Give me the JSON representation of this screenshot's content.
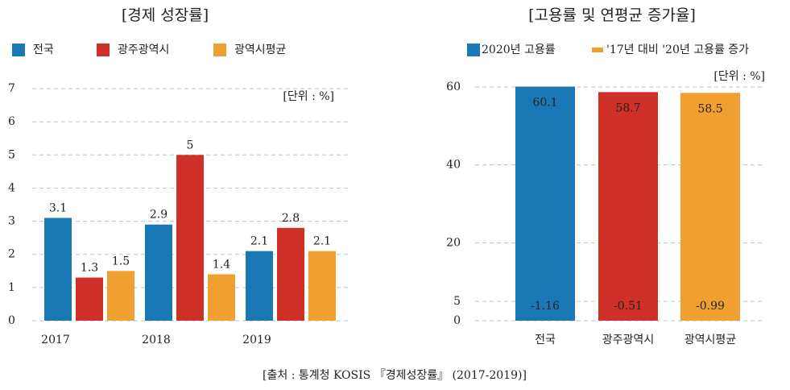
{
  "charts": [
    {
      "chart_data": {
        "type": "bar",
        "title": "[경제 성장률]",
        "annotation": "[단위 : %]",
        "categories": [
          "2017",
          "2018",
          "2019"
        ],
        "series": [
          {
            "name": "전국",
            "color": "#1a78b4",
            "values": [
              3.1,
              2.9,
              2.1
            ]
          },
          {
            "name": "광주광역시",
            "color": "#cf3128",
            "values": [
              1.3,
              5,
              2.8
            ]
          },
          {
            "name": "광역시평균",
            "color": "#f0a031",
            "values": [
              1.5,
              1.4,
              2.1
            ]
          }
        ],
        "ylim": [
          0,
          7
        ],
        "yticks": [
          0,
          1,
          2,
          3,
          4,
          5,
          6,
          7
        ],
        "grid": true
      }
    },
    {
      "chart_data": {
        "type": "bar",
        "title": "[고용률 및 연평균 증가율]",
        "annotation": "[단위 : %]",
        "categories": [
          "전국",
          "광주광역시",
          "광역시평균"
        ],
        "series": [
          {
            "name": "2020년 고용률",
            "color": "#1a78b4",
            "colors": [
              "#1a78b4",
              "#cf3128",
              "#f0a031"
            ],
            "values": [
              60.1,
              58.7,
              58.5
            ]
          },
          {
            "name": "'17년 대비 '20년 고용률 증가",
            "color": "#f0a031",
            "values": [
              -1.16,
              -0.51,
              -0.99
            ]
          }
        ],
        "ylim": [
          0,
          60
        ],
        "yticks": [
          0,
          5,
          20,
          40,
          60
        ],
        "grid": true
      }
    }
  ],
  "source": "[출처 : 통계청 KOSIS 『경제성장률』 (2017-2019)]"
}
